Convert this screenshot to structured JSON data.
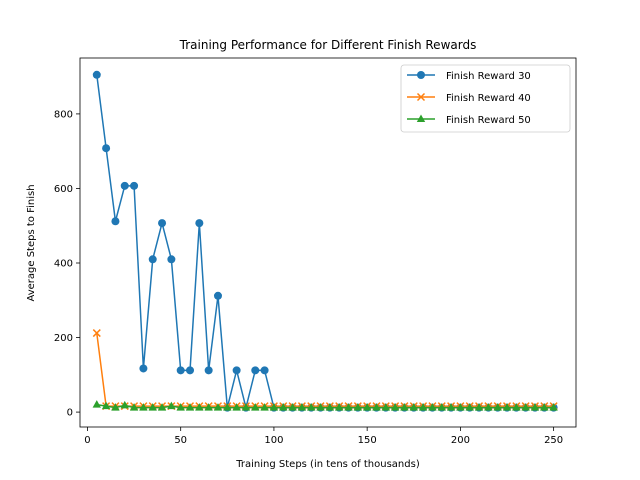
{
  "chart_data": {
    "type": "line",
    "title": "Training Performance for Different Finish Rewards",
    "xlabel": "Training Steps (in tens of thousands)",
    "ylabel": "Average Steps to Finish",
    "xlim": [
      -4,
      262
    ],
    "ylim": [
      -40,
      950
    ],
    "xticks": [
      0,
      50,
      100,
      150,
      200,
      250
    ],
    "yticks": [
      0,
      200,
      400,
      600,
      800
    ],
    "legend_position": "top-right",
    "grid": false,
    "x": [
      5,
      10,
      15,
      20,
      25,
      30,
      35,
      40,
      45,
      50,
      55,
      60,
      65,
      70,
      75,
      80,
      85,
      90,
      95,
      100,
      105,
      110,
      115,
      120,
      125,
      130,
      135,
      140,
      145,
      150,
      155,
      160,
      165,
      170,
      175,
      180,
      185,
      190,
      195,
      200,
      205,
      210,
      215,
      220,
      225,
      230,
      235,
      240,
      245,
      250
    ],
    "series": [
      {
        "name": "Finish Reward 30",
        "color": "#1f77b4",
        "marker": "circle",
        "values": [
          905,
          708,
          512,
          607,
          607,
          117,
          410,
          507,
          410,
          112,
          112,
          507,
          112,
          312,
          12,
          112,
          12,
          112,
          112,
          12,
          12,
          12,
          12,
          12,
          12,
          12,
          12,
          12,
          12,
          12,
          12,
          12,
          12,
          12,
          12,
          12,
          12,
          12,
          12,
          12,
          12,
          12,
          12,
          12,
          12,
          12,
          12,
          12,
          12,
          12
        ]
      },
      {
        "name": "Finish Reward 40",
        "color": "#ff7f0e",
        "marker": "x",
        "values": [
          212,
          16,
          16,
          16,
          16,
          16,
          16,
          16,
          16,
          16,
          16,
          16,
          16,
          16,
          16,
          16,
          16,
          16,
          16,
          16,
          16,
          16,
          16,
          16,
          16,
          16,
          16,
          16,
          16,
          16,
          16,
          16,
          16,
          16,
          16,
          16,
          16,
          16,
          16,
          16,
          16,
          16,
          16,
          16,
          16,
          16,
          16,
          16,
          16,
          16
        ]
      },
      {
        "name": "Finish Reward 50",
        "color": "#2ca02c",
        "marker": "triangle",
        "values": [
          20,
          16,
          12,
          18,
          12,
          12,
          12,
          12,
          16,
          12,
          12,
          12,
          12,
          12,
          12,
          12,
          12,
          12,
          12,
          12,
          12,
          12,
          12,
          12,
          12,
          12,
          12,
          12,
          12,
          12,
          12,
          12,
          12,
          12,
          12,
          12,
          12,
          12,
          12,
          12,
          12,
          12,
          12,
          12,
          12,
          12,
          12,
          12,
          12,
          12
        ]
      }
    ]
  }
}
